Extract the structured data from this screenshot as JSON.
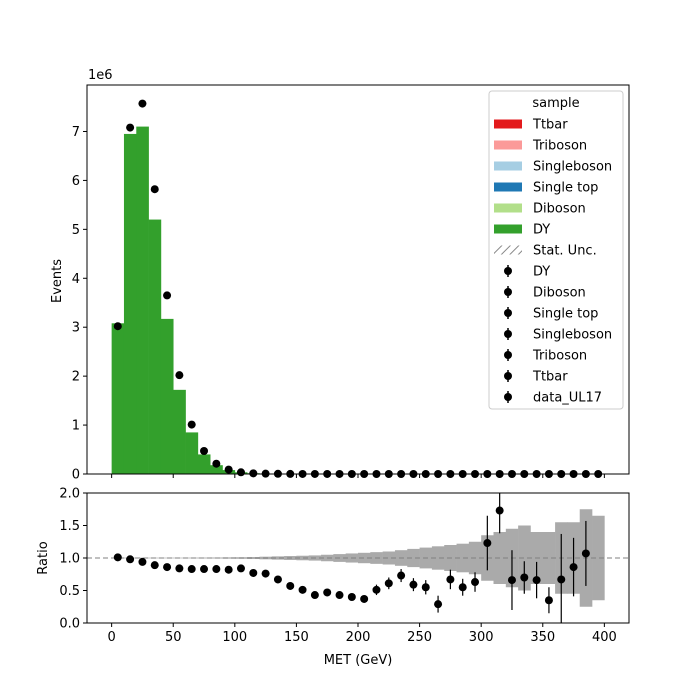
{
  "chart_data": [
    {
      "type": "bar",
      "stacked": true,
      "exponent_label": "1e6",
      "xlabel": "",
      "ylabel": "Events",
      "xlim": [
        -20,
        420
      ],
      "ylim": [
        0,
        7.95
      ],
      "yunit_scale": 1000000,
      "yticks": [
        0,
        1,
        2,
        3,
        4,
        5,
        6,
        7
      ],
      "bin_edges": [
        0,
        10,
        20,
        30,
        40,
        50,
        60,
        70,
        80,
        90,
        100,
        110,
        120,
        130,
        140,
        150,
        160,
        170,
        180,
        190,
        200,
        210,
        220,
        230,
        240,
        250,
        260,
        270,
        280,
        290,
        300,
        310,
        320,
        330,
        340,
        350,
        360,
        370,
        380,
        390,
        400
      ],
      "series": [
        {
          "name": "DY",
          "color": "#33a02c",
          "values": [
            3.08,
            6.95,
            7.1,
            5.2,
            3.17,
            1.72,
            0.85,
            0.4,
            0.18,
            0.08,
            0.035,
            0.016,
            0.008,
            0.005,
            0.003,
            0.002,
            0.0015,
            0.001,
            0.0008,
            0.0006,
            0.0005,
            0.0004,
            0.0003,
            0.0002,
            0.0002,
            0.00015,
            0.0001,
            0.0001,
            0.0001,
            8e-05,
            6e-05,
            5e-05,
            5e-05,
            4e-05,
            4e-05,
            3e-05,
            3e-05,
            2e-05,
            2e-05,
            2e-05
          ]
        }
      ],
      "data_points": {
        "name": "data_UL17",
        "x": [
          5,
          15,
          25,
          35,
          45,
          55,
          65,
          75,
          85,
          95,
          105,
          115,
          125,
          135,
          145,
          155,
          165,
          175,
          185,
          195,
          205,
          215,
          225,
          235,
          245,
          255,
          265,
          275,
          285,
          295,
          305,
          315,
          325,
          335,
          345,
          355,
          365,
          375,
          385,
          395
        ],
        "y": [
          3.02,
          7.08,
          7.57,
          5.82,
          3.65,
          2.02,
          1.01,
          0.47,
          0.21,
          0.09,
          0.035,
          0.014,
          0.007,
          0.004,
          0.002,
          0.0012,
          0.0008,
          0.0006,
          0.0004,
          0.0003,
          0.0002,
          0.0002,
          0.0002,
          0.0001,
          0.0001,
          0.0001,
          5e-05,
          5e-05,
          5e-05,
          5e-05,
          5e-05,
          5e-05,
          4e-05,
          3e-05,
          3e-05,
          2e-05,
          2e-05,
          2e-05,
          2e-05,
          1e-05
        ]
      },
      "legend": {
        "title": "sample",
        "placement": "top-right",
        "entries": [
          {
            "label": "Ttbar",
            "kind": "patch",
            "color": "#e31a1c"
          },
          {
            "label": "Triboson",
            "kind": "patch",
            "color": "#fb9a99"
          },
          {
            "label": "Singleboson",
            "kind": "patch",
            "color": "#a6cee3"
          },
          {
            "label": "Single top",
            "kind": "patch",
            "color": "#1f78b4"
          },
          {
            "label": "Diboson",
            "kind": "patch",
            "color": "#b2df8a"
          },
          {
            "label": "DY",
            "kind": "patch",
            "color": "#33a02c"
          },
          {
            "label": "Stat. Unc.",
            "kind": "hatch",
            "color": "#888888"
          },
          {
            "label": "DY",
            "kind": "marker",
            "color": "#000000"
          },
          {
            "label": "Diboson",
            "kind": "marker",
            "color": "#000000"
          },
          {
            "label": "Single top",
            "kind": "marker",
            "color": "#000000"
          },
          {
            "label": "Singleboson",
            "kind": "marker",
            "color": "#000000"
          },
          {
            "label": "Triboson",
            "kind": "marker",
            "color": "#000000"
          },
          {
            "label": "Ttbar",
            "kind": "marker",
            "color": "#000000"
          },
          {
            "label": "data_UL17",
            "kind": "marker",
            "color": "#000000"
          }
        ]
      }
    },
    {
      "type": "scatter",
      "xlabel": "MET (GeV)",
      "ylabel": "Ratio",
      "xlim": [
        -20,
        420
      ],
      "ylim": [
        0,
        2.0
      ],
      "xticks": [
        0,
        50,
        100,
        150,
        200,
        250,
        300,
        350,
        400
      ],
      "yticks": [
        0.0,
        0.5,
        1.0,
        1.5,
        2.0
      ],
      "reference_line": 1.0,
      "bin_edges": [
        0,
        10,
        20,
        30,
        40,
        50,
        60,
        70,
        80,
        90,
        100,
        110,
        120,
        130,
        140,
        150,
        160,
        170,
        180,
        190,
        200,
        210,
        220,
        230,
        240,
        250,
        260,
        270,
        280,
        290,
        300,
        310,
        320,
        330,
        340,
        350,
        360,
        370,
        380,
        390,
        400
      ],
      "uncertainty_half_width": [
        0.005,
        0.005,
        0.005,
        0.005,
        0.005,
        0.005,
        0.006,
        0.007,
        0.008,
        0.01,
        0.012,
        0.015,
        0.02,
        0.025,
        0.03,
        0.035,
        0.04,
        0.05,
        0.06,
        0.07,
        0.08,
        0.09,
        0.1,
        0.12,
        0.14,
        0.16,
        0.18,
        0.2,
        0.22,
        0.25,
        0.35,
        0.4,
        0.45,
        0.5,
        0.4,
        0.4,
        0.55,
        0.55,
        0.75,
        0.65
      ],
      "x": [
        5,
        15,
        25,
        35,
        45,
        55,
        65,
        75,
        85,
        95,
        105,
        115,
        125,
        135,
        145,
        155,
        165,
        175,
        185,
        195,
        205,
        215,
        225,
        235,
        245,
        255,
        265,
        275,
        285,
        295,
        305,
        315,
        325,
        335,
        345,
        355,
        365,
        375,
        385,
        395
      ],
      "y": [
        1.01,
        0.98,
        0.94,
        0.89,
        0.86,
        0.84,
        0.83,
        0.83,
        0.83,
        0.82,
        0.84,
        0.77,
        0.76,
        0.67,
        0.57,
        0.51,
        0.43,
        0.47,
        0.43,
        0.4,
        0.37,
        0.51,
        0.61,
        0.73,
        0.59,
        0.55,
        0.29,
        0.67,
        0.55,
        0.63,
        1.23,
        1.73,
        0.66,
        0.7,
        0.66,
        0.35,
        0.67,
        0.86,
        1.07,
        null
      ],
      "yerr": [
        0.01,
        0.01,
        0.01,
        0.01,
        0.01,
        0.01,
        0.01,
        0.01,
        0.01,
        0.01,
        0.02,
        0.02,
        0.03,
        0.03,
        0.03,
        0.03,
        0.03,
        0.04,
        0.04,
        0.04,
        0.05,
        0.08,
        0.09,
        0.1,
        0.1,
        0.11,
        0.13,
        0.15,
        0.13,
        0.15,
        0.42,
        0.35,
        0.46,
        0.25,
        0.28,
        0.2,
        0.7,
        0.45,
        0.5,
        0
      ]
    }
  ]
}
